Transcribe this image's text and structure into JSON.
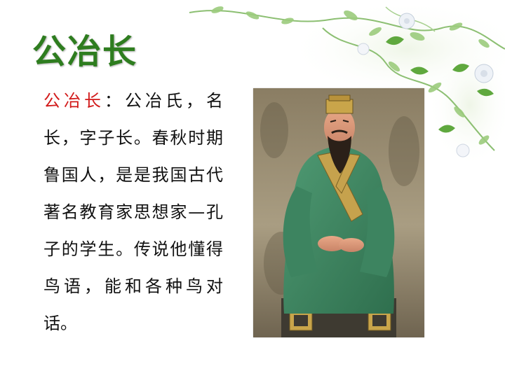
{
  "slide": {
    "title": "公冶长",
    "term": "公冶长",
    "sep": "：",
    "text": "公冶氏，名长，字子长。春秋时期鲁国人，是是我国古代著名教育家思想家—孔子的学生。传说他懂得鸟语，能和各种鸟对话。"
  },
  "colors": {
    "title": "#2e7d1f",
    "term": "#d21a1a",
    "robe": "#3e8a62",
    "background": "#ffffff"
  }
}
